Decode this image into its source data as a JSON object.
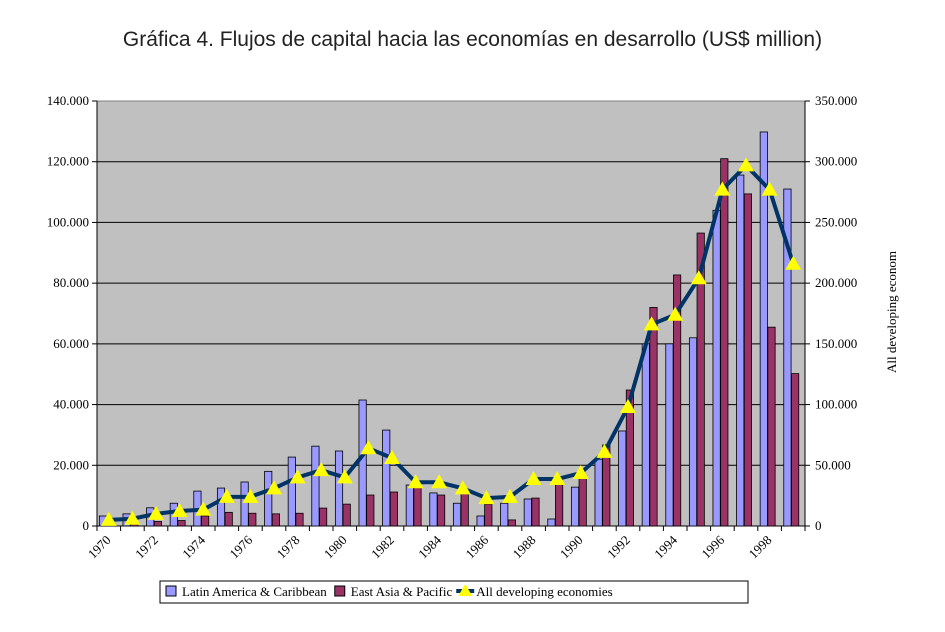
{
  "chart_data": {
    "type": "bar",
    "title": "Gráfica 4. Flujos de capital hacia las economías en desarrollo (US$ million)",
    "xlabel": "",
    "ylabel": "",
    "y2label": "All developing econom",
    "ylim": [
      0,
      140000
    ],
    "y2lim": [
      0,
      350000
    ],
    "yticks": [
      "0",
      "20.000",
      "40.000",
      "60.000",
      "80.000",
      "100.000",
      "120.000",
      "140.000"
    ],
    "y2ticks": [
      "0",
      "50.000",
      "100.000",
      "150.000",
      "200.000",
      "250.000",
      "300.000",
      "350.000"
    ],
    "xticks": [
      "1970",
      "1972",
      "1974",
      "1976",
      "1978",
      "1980",
      "1982",
      "1984",
      "1986",
      "1988",
      "1990",
      "1992",
      "1994",
      "1996",
      "1998"
    ],
    "grid": true,
    "legend_position": "bottom",
    "categories": [
      1970,
      1971,
      1972,
      1973,
      1974,
      1975,
      1976,
      1977,
      1978,
      1979,
      1980,
      1981,
      1982,
      1983,
      1984,
      1985,
      1986,
      1987,
      1988,
      1989,
      1990,
      1991,
      1992,
      1993,
      1994,
      1995,
      1996,
      1997,
      1998,
      1999
    ],
    "series": [
      {
        "name": "Latin America & Caribbean",
        "axis": "left",
        "kind": "bar",
        "color": "#9999ff",
        "values": [
          3300,
          4000,
          6000,
          7500,
          11500,
          12500,
          14500,
          18000,
          22700,
          26300,
          24700,
          41500,
          31600,
          13500,
          10900,
          7500,
          3300,
          7500,
          8900,
          2300,
          12800,
          22000,
          31300,
          60000,
          60000,
          62000,
          104000,
          115600,
          129800,
          111000
        ]
      },
      {
        "name": "East Asia & Pacific",
        "axis": "left",
        "kind": "bar",
        "color": "#993366",
        "values": [
          500,
          1000,
          1500,
          1800,
          3300,
          4500,
          4200,
          4000,
          4200,
          5900,
          7200,
          10200,
          11200,
          13000,
          10200,
          10900,
          7200,
          2000,
          9200,
          14500,
          15800,
          26700,
          44800,
          72000,
          82700,
          96500,
          121000,
          109400,
          65500,
          50200
        ]
      },
      {
        "name": "All developing economies",
        "axis": "right",
        "kind": "line",
        "color": "#003366",
        "marker_color": "#ffff00",
        "values": [
          5000,
          6000,
          10000,
          12400,
          13500,
          24000,
          24000,
          31000,
          40000,
          46000,
          40000,
          64000,
          56000,
          36000,
          36000,
          31000,
          23000,
          24000,
          38700,
          38700,
          43600,
          61000,
          98000,
          166000,
          174000,
          204000,
          277000,
          297000,
          277000,
          216000
        ]
      }
    ]
  }
}
